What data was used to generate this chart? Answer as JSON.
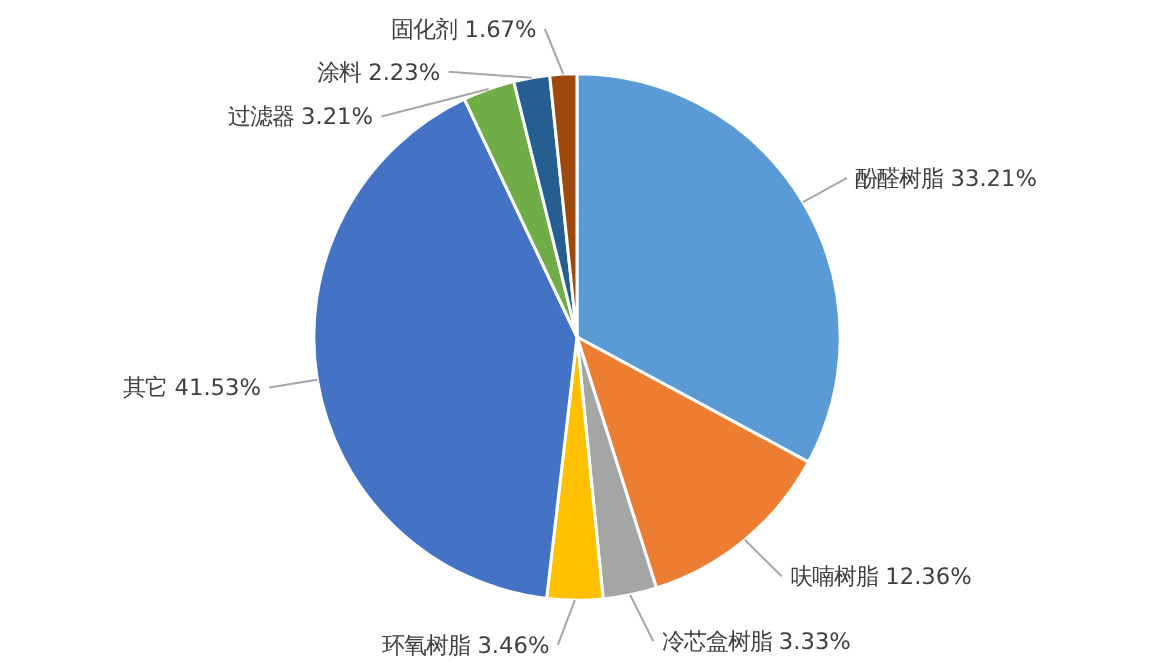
{
  "chart_data": {
    "type": "pie",
    "categories": [
      "酚醛树脂",
      "呋喃树脂",
      "冷芯盒树脂",
      "环氧树脂",
      "其它",
      "过滤器",
      "涂料",
      "固化剂"
    ],
    "values": [
      33.21,
      12.36,
      3.33,
      3.46,
      41.53,
      3.21,
      2.23,
      1.67
    ],
    "colors": [
      "#5b9bd5",
      "#ed7d31",
      "#a5a5a5",
      "#ffc000",
      "#4472c4",
      "#70ad47",
      "#255e91",
      "#9e480e"
    ],
    "value_labels": [
      "33.21%",
      "12.36%",
      "3.33%",
      "3.46%",
      "41.53%",
      "3.21%",
      "2.23%",
      "1.67%"
    ],
    "legend": false
  }
}
